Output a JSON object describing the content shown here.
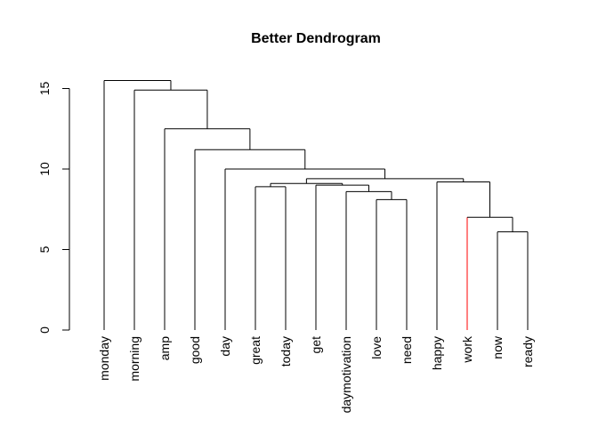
{
  "chart_data": {
    "type": "dendrogram",
    "title": "Better Dendrogram",
    "xlabel": "",
    "ylabel": "",
    "ylim": [
      0,
      15.5
    ],
    "yticks": [
      0,
      5,
      10,
      15
    ],
    "leaves": [
      "monday",
      "morning",
      "amp",
      "good",
      "day",
      "great",
      "today",
      "get",
      "daymotivation",
      "love",
      "need",
      "happy",
      "work",
      "now",
      "ready"
    ],
    "highlight_color": "#ff0000",
    "line_color": "#000000",
    "merges": [
      {
        "id": "c1",
        "left": "now",
        "right": "ready",
        "height": 6.1
      },
      {
        "id": "c2",
        "left": "work",
        "right": "c1",
        "height": 7.0,
        "highlight": "left"
      },
      {
        "id": "c3",
        "left": "love",
        "right": "need",
        "height": 8.1
      },
      {
        "id": "c4",
        "left": "daymotivation",
        "right": "c3",
        "height": 8.6
      },
      {
        "id": "c5",
        "left": "great",
        "right": "today",
        "height": 8.9
      },
      {
        "id": "c6",
        "left": "get",
        "right": "c4",
        "height": 9.0
      },
      {
        "id": "c7",
        "left": "c5",
        "right": "c6",
        "height": 9.1
      },
      {
        "id": "c8",
        "left": "happy",
        "right": "c2",
        "height": 9.2
      },
      {
        "id": "c9",
        "left": "c7",
        "right": "c8",
        "height": 9.4
      },
      {
        "id": "c10",
        "left": "day",
        "right": "c9",
        "height": 10.0
      },
      {
        "id": "c11",
        "left": "good",
        "right": "c10",
        "height": 11.2
      },
      {
        "id": "c12",
        "left": "amp",
        "right": "c11",
        "height": 12.5
      },
      {
        "id": "c13",
        "left": "morning",
        "right": "c12",
        "height": 14.9
      },
      {
        "id": "c14",
        "left": "monday",
        "right": "c13",
        "height": 15.5
      }
    ]
  }
}
